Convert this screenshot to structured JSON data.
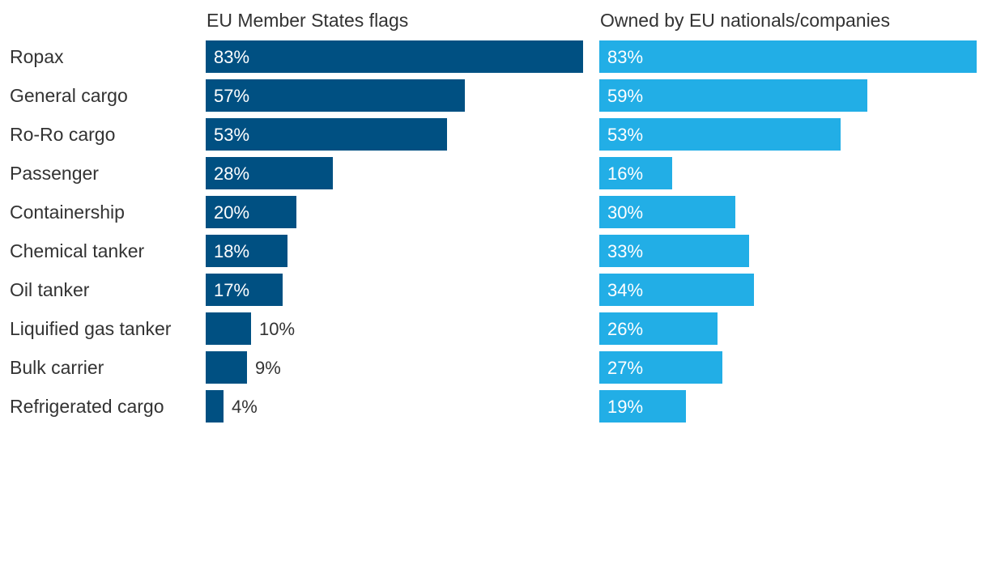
{
  "chart_data": {
    "type": "bar",
    "orientation": "horizontal",
    "title": "",
    "categories": [
      "Ropax",
      "General cargo",
      "Ro-Ro cargo",
      "Passenger",
      "Containership",
      "Chemical tanker",
      "Oil tanker",
      "Liquified gas tanker",
      "Bulk carrier",
      "Refrigerated cargo"
    ],
    "series": [
      {
        "name": "EU Member States flags",
        "color": "#005082",
        "values": [
          83,
          57,
          53,
          28,
          20,
          18,
          17,
          10,
          9,
          4
        ],
        "labels": [
          "83%",
          "57%",
          "53%",
          "28%",
          "20%",
          "18%",
          "17%",
          "10%",
          "9%",
          "4%"
        ]
      },
      {
        "name": "Owned by EU nationals/companies",
        "color": "#22aee6",
        "values": [
          83,
          59,
          53,
          16,
          30,
          33,
          34,
          26,
          27,
          19
        ],
        "labels": [
          "83%",
          "59%",
          "53%",
          "16%",
          "30%",
          "33%",
          "34%",
          "26%",
          "27%",
          "19%"
        ]
      }
    ],
    "xlim": [
      0,
      83
    ],
    "grid": false,
    "legend": "none"
  }
}
